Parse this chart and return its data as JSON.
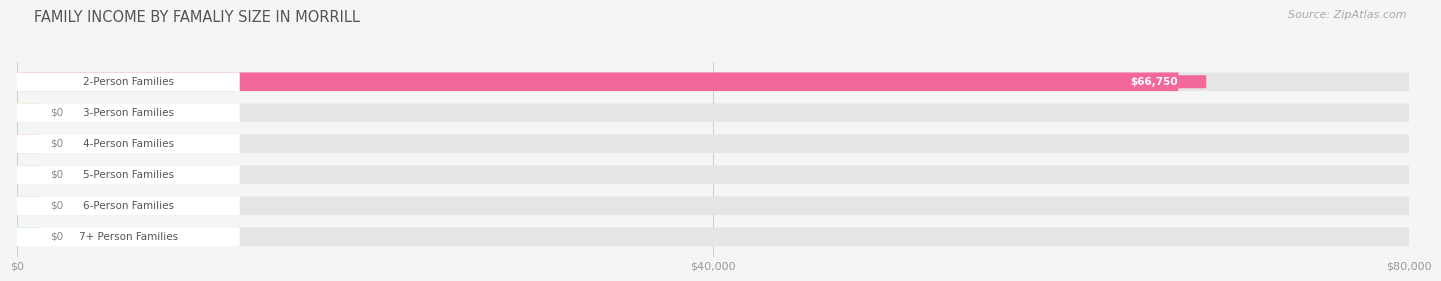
{
  "title": "FAMILY INCOME BY FAMALIY SIZE IN MORRILL",
  "source": "Source: ZipAtlas.com",
  "categories": [
    "2-Person Families",
    "3-Person Families",
    "4-Person Families",
    "5-Person Families",
    "6-Person Families",
    "7+ Person Families"
  ],
  "values": [
    66750,
    0,
    0,
    0,
    0,
    0
  ],
  "bar_colors": [
    "#f4679a",
    "#f5c98a",
    "#f0a899",
    "#a8bfe0",
    "#c4a8d4",
    "#7ececa"
  ],
  "value_labels": [
    "$66,750",
    "$0",
    "$0",
    "$0",
    "$0",
    "$0"
  ],
  "xlim": [
    0,
    80000
  ],
  "xticks": [
    0,
    40000,
    80000
  ],
  "xticklabels": [
    "$0",
    "$40,000",
    "$80,000"
  ],
  "background_color": "#f5f5f5",
  "bar_bg_color": "#e5e5e5",
  "title_fontsize": 10.5,
  "source_fontsize": 8,
  "label_fontsize": 7.5,
  "value_fontsize": 7.5
}
